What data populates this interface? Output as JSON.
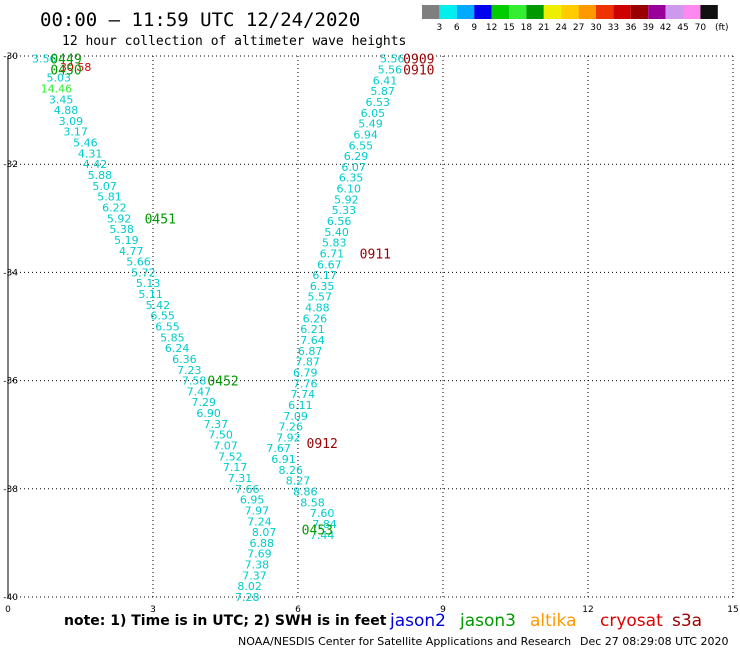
{
  "header": {
    "title": "00:00 – 11:59 UTC 12/24/2020",
    "subtitle": "12 hour collection of altimeter wave heights",
    "legend_unit": "(ft)"
  },
  "color_scale": {
    "labels": [
      "3",
      "6",
      "9",
      "12",
      "15",
      "18",
      "21",
      "24",
      "27",
      "30",
      "33",
      "36",
      "39",
      "42",
      "45",
      "70"
    ],
    "colors": [
      "#7f7f7f",
      "#00eeee",
      "#00aaff",
      "#0000ee",
      "#00cc00",
      "#33ee33",
      "#009900",
      "#eeee00",
      "#ffcc00",
      "#ff9900",
      "#ee3300",
      "#cc0000",
      "#990000",
      "#990099",
      "#cc99ee",
      "#ff88ee",
      "#111111"
    ]
  },
  "footer": {
    "note": "note: 1) Time is in UTC; 2) SWH is in feet",
    "satellites": [
      {
        "name": "jason2",
        "color": "#0000dd"
      },
      {
        "name": "jason3",
        "color": "#009900"
      },
      {
        "name": "altika",
        "color": "#ff9900"
      },
      {
        "name": "cryosat",
        "color": "#dd0000"
      },
      {
        "name": "s3a",
        "color": "#990000"
      }
    ],
    "credit": "NOAA/NESDIS Center for Satellite Applications and Research",
    "timestamp": "Dec 27 08:29:08 UTC 2020"
  },
  "chart_data": {
    "type": "scatter",
    "xlim": [
      0,
      15
    ],
    "ylim": [
      -40,
      -30
    ],
    "x_ticks": [
      0,
      3,
      6,
      9,
      12,
      15
    ],
    "x_tick_labels": [
      "0",
      "3",
      "6",
      "9",
      "12",
      "15"
    ],
    "y_ticks": [
      -30,
      -32,
      -34,
      -36,
      -38,
      -40
    ],
    "y_tick_labels": [
      "-30",
      "-32",
      "-34",
      "-36",
      "-38",
      "-40"
    ],
    "grid": true,
    "series": [
      {
        "color": "#00cccc",
        "points": [
          {
            "x": 0.75,
            "y": -30.05,
            "v": "3.56"
          },
          {
            "x": 1.4,
            "y": -30.2,
            "v": "30.58",
            "color": "#dd0000"
          },
          {
            "x": 1.05,
            "y": -30.4,
            "v": "5.03"
          },
          {
            "x": 1.0,
            "y": -30.6,
            "v": "14.46",
            "color": "#33ee33"
          },
          {
            "x": 1.1,
            "y": -30.8,
            "v": "3.45"
          },
          {
            "x": 1.2,
            "y": -31.0,
            "v": "4.88"
          },
          {
            "x": 1.3,
            "y": -31.2,
            "v": "3.09"
          },
          {
            "x": 1.4,
            "y": -31.4,
            "v": "3.17"
          },
          {
            "x": 1.6,
            "y": -31.6,
            "v": "5.46"
          },
          {
            "x": 1.7,
            "y": -31.8,
            "v": "4.31"
          },
          {
            "x": 1.8,
            "y": -32.0,
            "v": "4.42"
          },
          {
            "x": 1.9,
            "y": -32.2,
            "v": "5.88"
          },
          {
            "x": 2.0,
            "y": -32.4,
            "v": "5.07"
          },
          {
            "x": 2.1,
            "y": -32.6,
            "v": "5.81"
          },
          {
            "x": 2.2,
            "y": -32.8,
            "v": "6.22"
          },
          {
            "x": 2.3,
            "y": -33.0,
            "v": "5.92"
          },
          {
            "x": 2.35,
            "y": -33.2,
            "v": "5.38"
          },
          {
            "x": 2.45,
            "y": -33.4,
            "v": "5.19"
          },
          {
            "x": 2.55,
            "y": -33.6,
            "v": "4.77"
          },
          {
            "x": 2.7,
            "y": -33.8,
            "v": "5.66"
          },
          {
            "x": 2.8,
            "y": -34.0,
            "v": "5.72"
          },
          {
            "x": 2.9,
            "y": -34.2,
            "v": "5.13"
          },
          {
            "x": 2.95,
            "y": -34.4,
            "v": "5.11"
          },
          {
            "x": 3.1,
            "y": -34.6,
            "v": "5.42"
          },
          {
            "x": 3.2,
            "y": -34.8,
            "v": "6.55"
          },
          {
            "x": 3.3,
            "y": -35.0,
            "v": "6.55"
          },
          {
            "x": 3.4,
            "y": -35.2,
            "v": "5.85"
          },
          {
            "x": 3.5,
            "y": -35.4,
            "v": "6.24"
          },
          {
            "x": 3.65,
            "y": -35.6,
            "v": "6.36"
          },
          {
            "x": 3.75,
            "y": -35.8,
            "v": "7.23"
          },
          {
            "x": 3.85,
            "y": -36.0,
            "v": "7.58"
          },
          {
            "x": 3.95,
            "y": -36.2,
            "v": "7.47"
          },
          {
            "x": 4.05,
            "y": -36.4,
            "v": "7.29"
          },
          {
            "x": 4.15,
            "y": -36.6,
            "v": "6.90"
          },
          {
            "x": 4.3,
            "y": -36.8,
            "v": "7.37"
          },
          {
            "x": 4.4,
            "y": -37.0,
            "v": "7.50"
          },
          {
            "x": 4.5,
            "y": -37.2,
            "v": "7.07"
          },
          {
            "x": 4.6,
            "y": -37.4,
            "v": "7.52"
          },
          {
            "x": 4.7,
            "y": -37.6,
            "v": "7.17"
          },
          {
            "x": 4.8,
            "y": -37.8,
            "v": "7.31"
          },
          {
            "x": 4.95,
            "y": -38.0,
            "v": "7.66"
          },
          {
            "x": 5.05,
            "y": -38.2,
            "v": "6.95"
          },
          {
            "x": 5.15,
            "y": -38.4,
            "v": "7.97"
          },
          {
            "x": 5.2,
            "y": -38.6,
            "v": "7.24"
          },
          {
            "x": 5.3,
            "y": -38.8,
            "v": "8.07"
          },
          {
            "x": 5.25,
            "y": -39.0,
            "v": "6.88"
          },
          {
            "x": 5.2,
            "y": -39.2,
            "v": "7.69"
          },
          {
            "x": 5.15,
            "y": -39.4,
            "v": "7.38"
          },
          {
            "x": 5.1,
            "y": -39.6,
            "v": "7.37"
          },
          {
            "x": 5.0,
            "y": -39.8,
            "v": "8.02"
          },
          {
            "x": 4.95,
            "y": -40.0,
            "v": "7.28"
          }
        ]
      },
      {
        "color": "#00cccc",
        "points": [
          {
            "x": 7.95,
            "y": -30.05,
            "v": "5.56"
          },
          {
            "x": 7.9,
            "y": -30.25,
            "v": "5.56"
          },
          {
            "x": 7.8,
            "y": -30.45,
            "v": "6.41"
          },
          {
            "x": 7.75,
            "y": -30.65,
            "v": "5.87"
          },
          {
            "x": 7.65,
            "y": -30.85,
            "v": "6.53"
          },
          {
            "x": 7.55,
            "y": -31.05,
            "v": "6.05"
          },
          {
            "x": 7.5,
            "y": -31.25,
            "v": "5.49"
          },
          {
            "x": 7.4,
            "y": -31.45,
            "v": "6.94"
          },
          {
            "x": 7.3,
            "y": -31.65,
            "v": "6.55"
          },
          {
            "x": 7.2,
            "y": -31.85,
            "v": "6.29"
          },
          {
            "x": 7.15,
            "y": -32.05,
            "v": "6.07"
          },
          {
            "x": 7.1,
            "y": -32.25,
            "v": "6.35"
          },
          {
            "x": 7.05,
            "y": -32.45,
            "v": "6.10"
          },
          {
            "x": 7.0,
            "y": -32.65,
            "v": "5.92"
          },
          {
            "x": 6.95,
            "y": -32.85,
            "v": "5.33"
          },
          {
            "x": 6.85,
            "y": -33.05,
            "v": "6.56"
          },
          {
            "x": 6.8,
            "y": -33.25,
            "v": "5.40"
          },
          {
            "x": 6.75,
            "y": -33.45,
            "v": "5.83"
          },
          {
            "x": 6.7,
            "y": -33.65,
            "v": "6.71"
          },
          {
            "x": 6.65,
            "y": -33.85,
            "v": "6.67"
          },
          {
            "x": 6.55,
            "y": -34.05,
            "v": "6.17"
          },
          {
            "x": 6.5,
            "y": -34.25,
            "v": "6.35"
          },
          {
            "x": 6.45,
            "y": -34.45,
            "v": "5.57"
          },
          {
            "x": 6.4,
            "y": -34.65,
            "v": "4.88"
          },
          {
            "x": 6.35,
            "y": -34.85,
            "v": "6.26"
          },
          {
            "x": 6.3,
            "y": -35.05,
            "v": "6.21"
          },
          {
            "x": 6.3,
            "y": -35.25,
            "v": "7.64"
          },
          {
            "x": 6.25,
            "y": -35.45,
            "v": "6.87"
          },
          {
            "x": 6.2,
            "y": -35.65,
            "v": "7.87"
          },
          {
            "x": 6.15,
            "y": -35.85,
            "v": "6.79"
          },
          {
            "x": 6.15,
            "y": -36.05,
            "v": "7.76"
          },
          {
            "x": 6.1,
            "y": -36.25,
            "v": "7.74"
          },
          {
            "x": 6.05,
            "y": -36.45,
            "v": "6.11"
          },
          {
            "x": 5.95,
            "y": -36.65,
            "v": "7.09"
          },
          {
            "x": 5.85,
            "y": -36.85,
            "v": "7.26"
          },
          {
            "x": 5.8,
            "y": -37.05,
            "v": "7.92"
          },
          {
            "x": 5.6,
            "y": -37.25,
            "v": "7.67"
          },
          {
            "x": 5.7,
            "y": -37.45,
            "v": "6.91"
          },
          {
            "x": 5.85,
            "y": -37.65,
            "v": "8.26"
          },
          {
            "x": 6.0,
            "y": -37.85,
            "v": "8.27"
          },
          {
            "x": 6.15,
            "y": -38.05,
            "v": "8.86"
          },
          {
            "x": 6.3,
            "y": -38.25,
            "v": "8.58"
          },
          {
            "x": 6.5,
            "y": -38.45,
            "v": "7.60"
          },
          {
            "x": 6.55,
            "y": -38.65,
            "v": "7.84"
          },
          {
            "x": 6.5,
            "y": -38.85,
            "v": "7.44"
          }
        ]
      }
    ],
    "time_labels": [
      {
        "x": 1.2,
        "y": -30.05,
        "text": "0449",
        "color": "#009900"
      },
      {
        "x": 1.2,
        "y": -30.25,
        "text": "0450",
        "color": "#009900"
      },
      {
        "x": 3.15,
        "y": -33.0,
        "text": "0451",
        "color": "#009900"
      },
      {
        "x": 4.45,
        "y": -36.0,
        "text": "0452",
        "color": "#009900"
      },
      {
        "x": 6.4,
        "y": -38.75,
        "text": "0453",
        "color": "#009900"
      },
      {
        "x": 8.5,
        "y": -30.05,
        "text": "0909",
        "color": "#990000"
      },
      {
        "x": 8.5,
        "y": -30.25,
        "text": "0910",
        "color": "#990000"
      },
      {
        "x": 7.6,
        "y": -33.65,
        "text": "0911",
        "color": "#990000"
      },
      {
        "x": 6.5,
        "y": -37.15,
        "text": "0912",
        "color": "#990000"
      }
    ]
  }
}
